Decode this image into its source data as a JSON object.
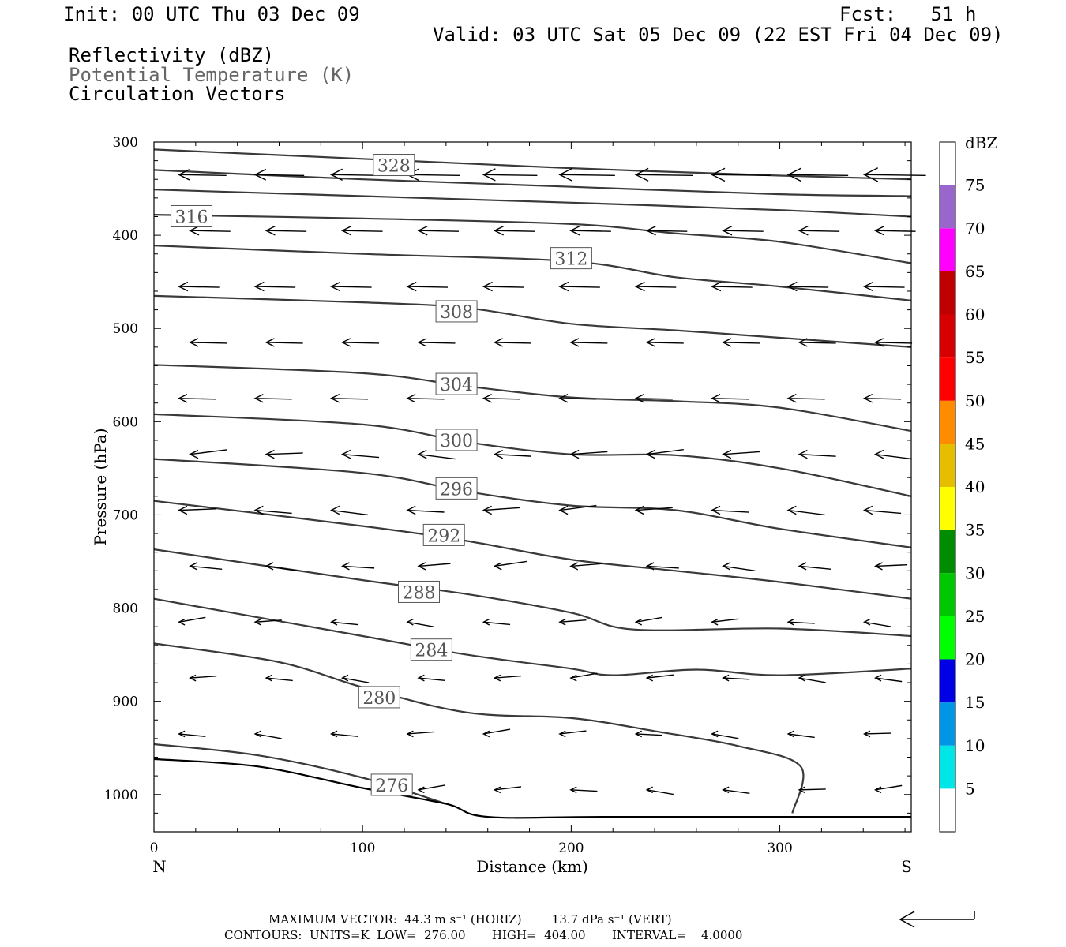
{
  "header": {
    "init": "Init: 00 UTC Thu 03 Dec 09",
    "fcst": "Fcst:   51 h",
    "valid": "Valid: 03 UTC Sat 05 Dec 09 (22 EST Fri 04 Dec 09)",
    "legend_lines": [
      "Reflectivity (dBZ)",
      "Potential Temperature (K)",
      "Circulation Vectors"
    ]
  },
  "chart_data": {
    "type": "cross-section",
    "xlabel": "Distance (km)",
    "ylabel": "Pressure (hPa)",
    "xlim": [
      0,
      363
    ],
    "ylim": [
      1040,
      300
    ],
    "x_ticks": [
      0,
      100,
      200,
      300
    ],
    "y_ticks": [
      300,
      400,
      500,
      600,
      700,
      800,
      900,
      1000
    ],
    "left_end_label": "N",
    "right_end_label": "S",
    "theta_contours": [
      {
        "value": 328,
        "label": "328",
        "label_at": [
          115,
          325
        ],
        "points": [
          [
            0,
            308
          ],
          [
            100,
            318
          ],
          [
            200,
            328
          ],
          [
            300,
            336
          ],
          [
            363,
            340
          ]
        ]
      },
      {
        "value": 324,
        "label": "",
        "points": [
          [
            0,
            330
          ],
          [
            100,
            340
          ],
          [
            200,
            348
          ],
          [
            300,
            356
          ],
          [
            363,
            358
          ]
        ]
      },
      {
        "value": 320,
        "label": "",
        "points": [
          [
            0,
            351
          ],
          [
            100,
            358
          ],
          [
            200,
            365
          ],
          [
            300,
            373
          ],
          [
            363,
            380
          ]
        ]
      },
      {
        "value": 316,
        "label": "316",
        "label_at": [
          18,
          380
        ],
        "points": [
          [
            0,
            378
          ],
          [
            100,
            382
          ],
          [
            200,
            388
          ],
          [
            250,
            398
          ],
          [
            300,
            407
          ],
          [
            363,
            430
          ]
        ]
      },
      {
        "value": 312,
        "label": "312",
        "label_at": [
          200,
          425
        ],
        "points": [
          [
            0,
            411
          ],
          [
            100,
            420
          ],
          [
            200,
            428
          ],
          [
            250,
            445
          ],
          [
            300,
            455
          ],
          [
            363,
            470
          ]
        ]
      },
      {
        "value": 308,
        "label": "308",
        "label_at": [
          145,
          482
        ],
        "points": [
          [
            0,
            465
          ],
          [
            100,
            472
          ],
          [
            150,
            478
          ],
          [
            200,
            495
          ],
          [
            250,
            502
          ],
          [
            300,
            510
          ],
          [
            363,
            520
          ]
        ]
      },
      {
        "value": 304,
        "label": "304",
        "label_at": [
          145,
          560
        ],
        "points": [
          [
            0,
            539
          ],
          [
            100,
            548
          ],
          [
            150,
            562
          ],
          [
            200,
            574
          ],
          [
            250,
            578
          ],
          [
            300,
            585
          ],
          [
            363,
            610
          ]
        ]
      },
      {
        "value": 300,
        "label": "300",
        "label_at": [
          145,
          620
        ],
        "points": [
          [
            0,
            592
          ],
          [
            100,
            603
          ],
          [
            150,
            622
          ],
          [
            200,
            635
          ],
          [
            250,
            636
          ],
          [
            300,
            650
          ],
          [
            363,
            680
          ]
        ]
      },
      {
        "value": 296,
        "label": "296",
        "label_at": [
          145,
          672
        ],
        "points": [
          [
            0,
            640
          ],
          [
            100,
            655
          ],
          [
            150,
            675
          ],
          [
            200,
            690
          ],
          [
            250,
            695
          ],
          [
            300,
            715
          ],
          [
            363,
            735
          ]
        ]
      },
      {
        "value": 292,
        "label": "292",
        "label_at": [
          139,
          722
        ],
        "points": [
          [
            0,
            685
          ],
          [
            100,
            712
          ],
          [
            150,
            728
          ],
          [
            200,
            748
          ],
          [
            250,
            760
          ],
          [
            300,
            772
          ],
          [
            363,
            790
          ]
        ]
      },
      {
        "value": 288,
        "label": "288",
        "label_at": [
          127,
          783
        ],
        "points": [
          [
            0,
            737
          ],
          [
            100,
            770
          ],
          [
            150,
            785
          ],
          [
            200,
            805
          ],
          [
            230,
            823
          ],
          [
            300,
            822
          ],
          [
            363,
            830
          ]
        ]
      },
      {
        "value": 284,
        "label": "284",
        "label_at": [
          133,
          845
        ],
        "points": [
          [
            0,
            790
          ],
          [
            100,
            830
          ],
          [
            150,
            850
          ],
          [
            200,
            865
          ],
          [
            220,
            872
          ],
          [
            260,
            866
          ],
          [
            300,
            872
          ],
          [
            363,
            865
          ]
        ]
      },
      {
        "value": 280,
        "label": "280",
        "label_at": [
          108,
          896
        ],
        "points": [
          [
            0,
            838
          ],
          [
            60,
            858
          ],
          [
            100,
            885
          ],
          [
            150,
            912
          ],
          [
            200,
            918
          ],
          [
            240,
            932
          ],
          [
            280,
            948
          ],
          [
            310,
            970
          ],
          [
            306,
            1020
          ]
        ]
      },
      {
        "value": 276,
        "label": "276",
        "label_at": [
          114,
          990
        ],
        "points": [
          [
            0,
            946
          ],
          [
            50,
            958
          ],
          [
            100,
            982
          ],
          [
            140,
            1010
          ]
        ]
      }
    ],
    "ground_line": [
      [
        0,
        962
      ],
      [
        50,
        970
      ],
      [
        100,
        993
      ],
      [
        140,
        1010
      ],
      [
        160,
        1024
      ],
      [
        220,
        1024
      ],
      [
        363,
        1024
      ]
    ],
    "reflectivity_colorbar": {
      "unit": "dBZ",
      "levels": [
        "5",
        "10",
        "15",
        "20",
        "25",
        "30",
        "35",
        "40",
        "45",
        "50",
        "55",
        "60",
        "65",
        "70",
        "75"
      ],
      "colors": [
        "#ffffff",
        "#00e5e5",
        "#0096e5",
        "#0000e5",
        "#00ff00",
        "#00c800",
        "#008c00",
        "#ffff00",
        "#e5be00",
        "#ff8c00",
        "#ff0000",
        "#d70000",
        "#c00000",
        "#ff00ff",
        "#9966cc",
        "#ffffff"
      ]
    },
    "vector_scale": {
      "horiz": 44.3,
      "horiz_unit": "m/s",
      "vert": 13.7,
      "vert_unit": "dPa/s"
    }
  },
  "footer": {
    "max_vector": "MAXIMUM VECTOR:  44.3 m s⁻¹ (HORIZ)        13.7 dPa s⁻¹ (VERT)",
    "contours": "CONTOURS:  UNITS=K  LOW=  276.00       HIGH=  404.00       INTERVAL=    4.0000"
  }
}
